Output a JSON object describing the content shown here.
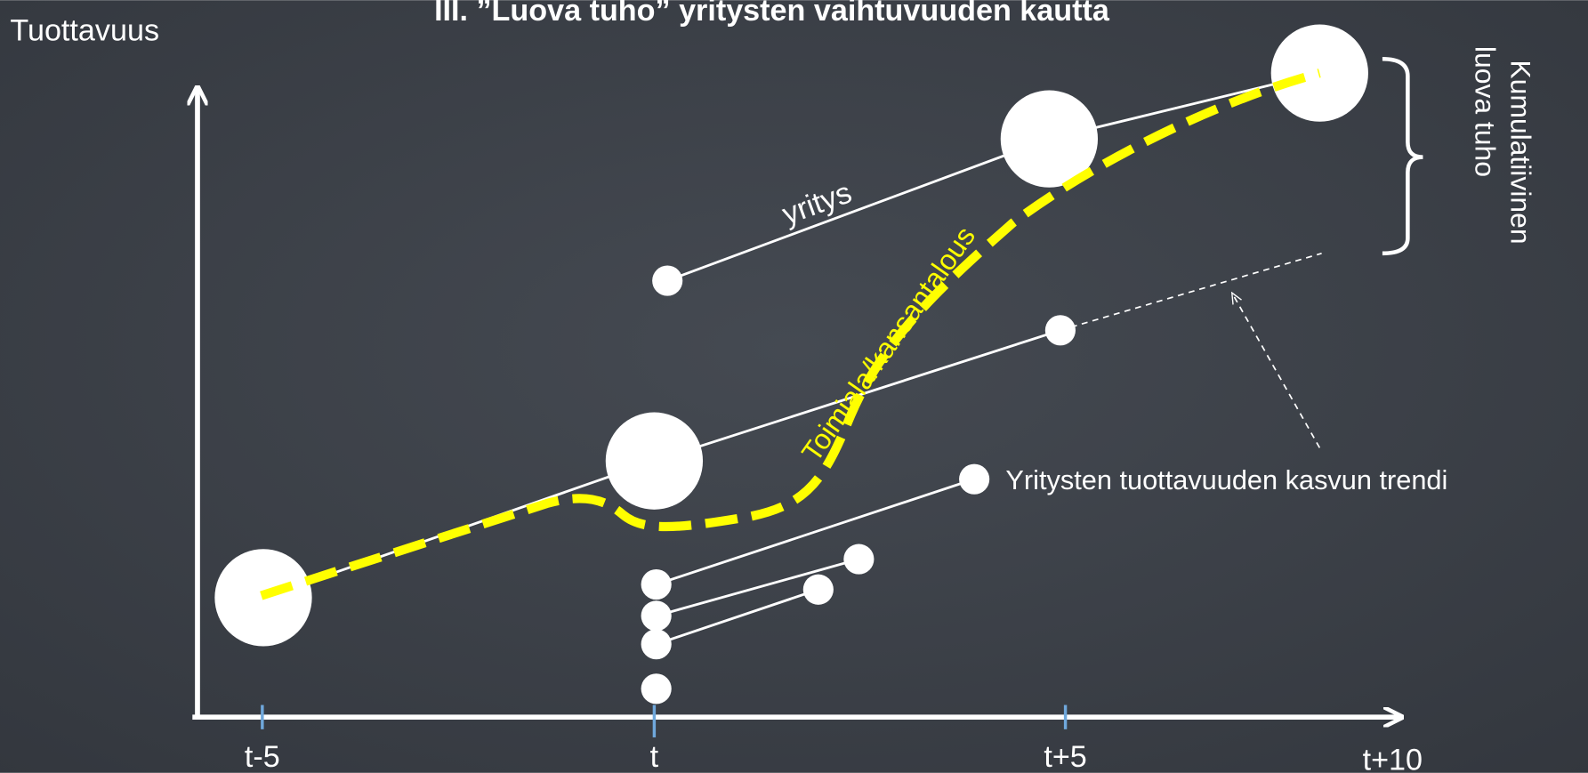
{
  "title": "III. ”Luova tuho” yritysten vaihtuvuuden kautta",
  "y_axis_label": "Tuottavuus",
  "x_ticks": [
    "t-5",
    "t",
    "t+5",
    "t+10"
  ],
  "labels": {
    "firm": "yritys",
    "industry": "Toimiala/kansantalous",
    "trend": "Yritysten tuottavuuden kasvun trendi",
    "cumulative": [
      "Kumulatiivinen",
      "luova tuho"
    ]
  }
}
